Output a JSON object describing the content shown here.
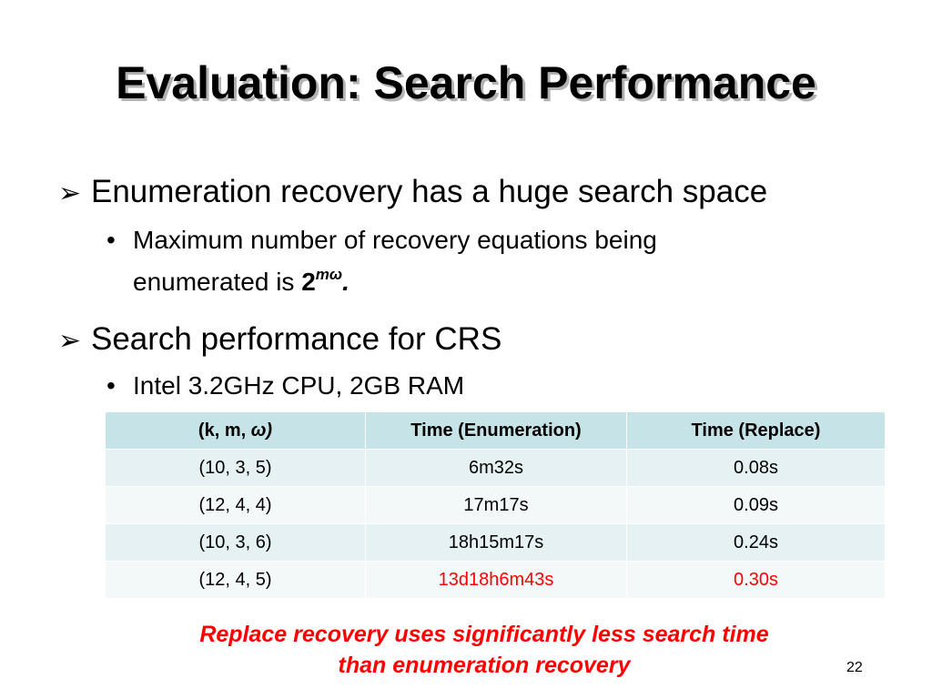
{
  "slide": {
    "title": "Evaluation: Search Performance",
    "bullets": [
      {
        "arrow": "➢",
        "text": "Enumeration recovery has a huge search space",
        "sub": {
          "dot": "•",
          "line1": "Maximum number of recovery equations being",
          "line2_prefix": "enumerated is ",
          "base": "2",
          "exponent": "mω",
          "period": "."
        }
      },
      {
        "arrow": "➢",
        "text": "Search performance for CRS",
        "sub": {
          "dot": "•",
          "text": "Intel 3.2GHz CPU, 2GB RAM"
        }
      }
    ],
    "table": {
      "headers": [
        "(k, m, ",
        "ω)",
        "Time (Enumeration)",
        "Time (Replace)"
      ],
      "rows": [
        [
          "(10, 3, 5)",
          "6m32s",
          "0.08s"
        ],
        [
          "(12, 4, 4)",
          "17m17s",
          "0.09s"
        ],
        [
          "(10, 3, 6)",
          "18h15m17s",
          "0.24s"
        ],
        [
          "(12, 4, 5)",
          "13d18h6m43s",
          "0.30s"
        ]
      ]
    },
    "note_line1": "Replace recovery uses significantly less search time",
    "note_line2": "than enumeration recovery",
    "page_number": "22",
    "colors": {
      "highlight": "#ff0000",
      "header_bg": "#c6e3e7",
      "row_bg_1": "#e6f1f3",
      "row_bg_2": "#f3f8f9"
    }
  }
}
